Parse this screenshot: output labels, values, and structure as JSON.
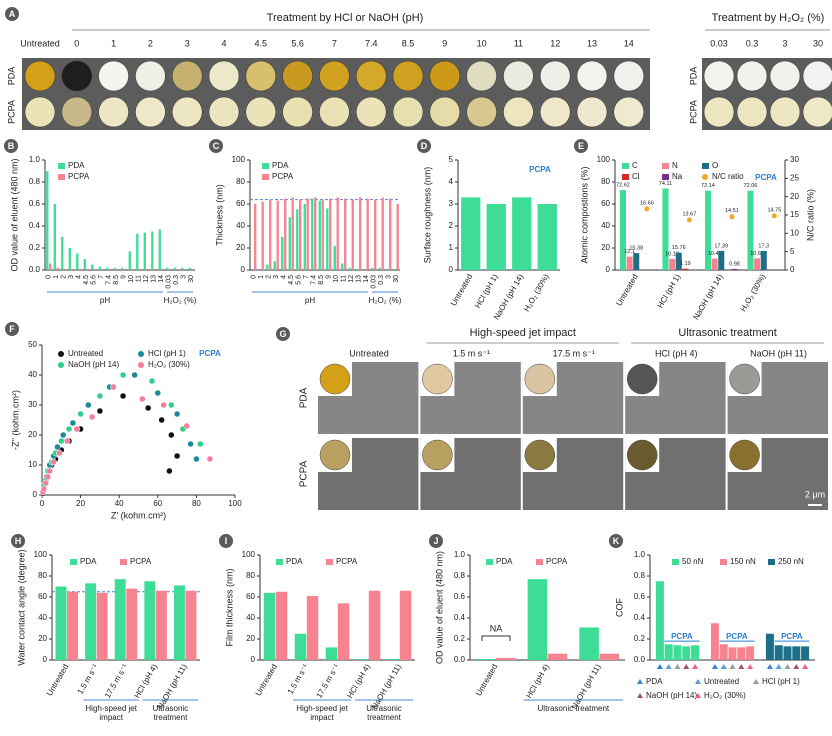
{
  "panel_a": {
    "label": "A",
    "header_ph": "Treatment by HCl or NaOH (pH)",
    "header_h2o2": "Treatment by H₂O₂ (%)",
    "rows": [
      "PDA",
      "PCPA"
    ],
    "columns": [
      "Untreated",
      "0",
      "1",
      "2",
      "3",
      "4",
      "4.5",
      "5.6",
      "7",
      "7.4",
      "8.5",
      "9",
      "10",
      "11",
      "12",
      "13",
      "14"
    ],
    "h2o2_columns": [
      "0.03",
      "0.3",
      "3",
      "30"
    ],
    "pda_colors": [
      "#d4a017",
      "#1e1e1e",
      "#f5f5f0",
      "#efefe8",
      "#c8b070",
      "#ece8c8",
      "#d8bf6e",
      "#c99a20",
      "#d0a020",
      "#d4a828",
      "#d0a020",
      "#cc9a18",
      "#e0dcc0",
      "#ecebe0",
      "#f0efe8",
      "#f2f2ee",
      "#f0f0ec"
    ],
    "pcpa_colors": [
      "#ebe3b8",
      "#c9b98a",
      "#ede6c4",
      "#eee8c8",
      "#ece6c2",
      "#ebe4bc",
      "#ebe3b8",
      "#e9e0b2",
      "#eae1b4",
      "#ebe2b6",
      "#e8dfb0",
      "#e6dcaa",
      "#d8c890",
      "#ece5c0",
      "#eee8c8",
      "#eee9cc",
      "#efeacf"
    ],
    "h2o2_pda_colors": [
      "#f2f2ef",
      "#f1f1ee",
      "#f0f0ec",
      "#f2f2f0"
    ],
    "h2o2_pcpa_colors": [
      "#ede6c0",
      "#ece5be",
      "#ede6c2",
      "#eee8c6"
    ]
  },
  "panel_g": {
    "label": "G",
    "group_headers": [
      "High-speed jet impact",
      "Ultrasonic treatment"
    ],
    "columns": [
      "Untreated",
      "1.5 m s⁻¹",
      "17.5 m s⁻¹",
      "HCl (pH 4)",
      "NaOH (pH 11)"
    ],
    "rows": [
      "PDA",
      "PCPA"
    ],
    "pda_colors": [
      "#d4a017",
      "#e0c8a0",
      "#d8c4a0",
      "#555555",
      "#9a9a96"
    ],
    "pcpa_colors": [
      "#b8a060",
      "#b8a060",
      "#8a7a40",
      "#6a5a30",
      "#8a7030"
    ],
    "scale_bar": "2 μm"
  },
  "chart_data": [
    {
      "label": "B",
      "type": "bar",
      "ylabel": "OD value of eluent (480 nm)",
      "categories": [
        "0",
        "1",
        "2",
        "3",
        "4",
        "4.5",
        "5.6",
        "7",
        "7.4",
        "8.5",
        "9",
        "10",
        "11",
        "12",
        "13",
        "14",
        "0.03",
        "0.3",
        "3",
        "30"
      ],
      "x_groups": [
        "pH",
        "H₂O₂ (%)"
      ],
      "series": [
        {
          "name": "PDA",
          "color": "#3ddc97",
          "values": [
            0.9,
            0.6,
            0.3,
            0.2,
            0.15,
            0.1,
            0.05,
            0.03,
            0.02,
            0.02,
            0.02,
            0.17,
            0.33,
            0.34,
            0.35,
            0.37,
            0.02,
            0.02,
            0.02,
            0.02
          ]
        },
        {
          "name": "PCPA",
          "color": "#f6838f",
          "values": [
            0.06,
            0.02,
            0.01,
            0.01,
            0.01,
            0.01,
            0.01,
            0.01,
            0.01,
            0.01,
            0.01,
            0.01,
            0.01,
            0.01,
            0.01,
            0.01,
            0.01,
            0.01,
            0.01,
            0.01
          ]
        }
      ],
      "ylim": [
        0,
        1
      ],
      "yticks": [
        {
          "value": 0,
          "label": "0.0"
        },
        0.2,
        0.4,
        0.6,
        0.8,
        {
          "value": 1,
          "label": "1.0"
        }
      ]
    },
    {
      "label": "C",
      "type": "bar",
      "ylabel": "Thickness (nm)",
      "categories": [
        "0",
        "1",
        "2",
        "3",
        "4",
        "4.5",
        "5.6",
        "7",
        "7.4",
        "8.5",
        "9",
        "10",
        "11",
        "12",
        "13",
        "14",
        "0.03",
        "0.3",
        "3",
        "30"
      ],
      "x_groups": [
        "pH",
        "H₂O₂ (%)"
      ],
      "series": [
        {
          "name": "PDA",
          "color": "#3ddc97",
          "values": [
            0,
            0,
            5,
            8,
            30,
            48,
            55,
            60,
            65,
            63,
            56,
            22,
            6,
            2,
            1,
            0,
            2,
            2,
            1,
            1
          ]
        },
        {
          "name": "PCPA",
          "color": "#f6838f",
          "values": [
            60,
            62,
            64,
            63,
            65,
            66,
            64,
            65,
            66,
            64,
            65,
            66,
            65,
            64,
            66,
            65,
            64,
            66,
            65,
            60
          ]
        }
      ],
      "reference_line": 64,
      "ylim": [
        0,
        100
      ],
      "yticks": [
        0,
        20,
        40,
        60,
        80,
        100
      ]
    },
    {
      "label": "D",
      "type": "bar",
      "ylabel": "Surface roughness (nm)",
      "annotation": "PCPA",
      "categories": [
        "Untreated",
        "HCl (pH 1)",
        "NaOH (pH 14)",
        "H₂O₂ (30%)"
      ],
      "values": [
        3.3,
        3.0,
        3.3,
        3.0
      ],
      "color": "#3ddc97",
      "ylim": [
        0,
        5
      ],
      "yticks": [
        0,
        1,
        2,
        3,
        4,
        5
      ]
    },
    {
      "label": "E",
      "type": "bar",
      "ylabel": "Atomic compostions (%)",
      "y2label": "N/C ratio (%)",
      "annotation": "PCPA",
      "categories": [
        "Untreated",
        "HCl (pH 1)",
        "NaOH (pH 14)",
        "H₂O₂ (30%)"
      ],
      "series": [
        {
          "name": "C",
          "color": "#3ddc97",
          "values": [
            72.62,
            74.11,
            72.14,
            72.06
          ]
        },
        {
          "name": "N",
          "color": "#f6838f",
          "values": [
            12.1,
            10.13,
            10.47,
            10.6
          ],
          "value_labels": [
            "12.1",
            "10.13",
            "10.47",
            "10.60"
          ]
        },
        {
          "name": "O",
          "color": "#1c6f86",
          "values": [
            15.38,
            15.76,
            17.39,
            17.3
          ]
        },
        {
          "name": "Cl",
          "color": "#d62728",
          "values": [
            null,
            1.19,
            null,
            null
          ]
        },
        {
          "name": "Na",
          "color": "#7b2d8e",
          "values": [
            null,
            null,
            0.98,
            null
          ]
        },
        {
          "name": "N/C ratio",
          "color": "#f5a623",
          "axis": "y2",
          "values": [
            16.66,
            13.67,
            14.51,
            14.75
          ]
        }
      ],
      "ylim": [
        0,
        100
      ],
      "yticks": [
        0,
        20,
        40,
        60,
        80,
        100
      ],
      "y2lim": [
        0,
        30
      ],
      "y2ticks": [
        0,
        5,
        10,
        15,
        20,
        25,
        30
      ]
    },
    {
      "label": "F",
      "type": "scatter",
      "xlabel": "Z' (kohm.cm²)",
      "ylabel": "-Z'' (kohm.cm²)",
      "annotation": "PCPA",
      "series": [
        {
          "name": "Untreated",
          "color": "#111111",
          "x": [
            0.5,
            1,
            1.5,
            2.5,
            3.5,
            5,
            7,
            10,
            14,
            20,
            30,
            42,
            55,
            62,
            67,
            70,
            66
          ],
          "values": [
            0.5,
            2,
            4,
            6,
            8,
            10,
            12,
            15,
            18,
            22,
            28,
            33,
            29,
            25,
            20,
            13,
            8
          ]
        },
        {
          "name": "HCl (pH 1)",
          "color": "#1c8a9a",
          "x": [
            0.5,
            1,
            2,
            3,
            4,
            6,
            8,
            11,
            16,
            24,
            35,
            48,
            60,
            70,
            77,
            80
          ],
          "values": [
            1,
            3,
            5,
            8,
            10,
            13,
            16,
            20,
            24,
            30,
            36,
            40,
            34,
            27,
            17,
            12
          ]
        },
        {
          "name": "NaOH (pH 14)",
          "color": "#2fcf8a",
          "x": [
            0.5,
            1,
            2,
            3,
            5,
            7,
            10,
            14,
            20,
            30,
            42,
            57,
            67,
            73,
            82
          ],
          "values": [
            1,
            3,
            5,
            8,
            11,
            14,
            18,
            22,
            27,
            33,
            40,
            38,
            30,
            22,
            17
          ]
        },
        {
          "name": "H₂O₂ (30%)",
          "color": "#f47f9a",
          "x": [
            0.5,
            1,
            2,
            3,
            4,
            6,
            9,
            13,
            18,
            26,
            37,
            52,
            63,
            75,
            87
          ],
          "values": [
            1,
            2,
            4,
            6,
            8,
            11,
            14,
            18,
            22,
            26,
            36,
            32,
            30,
            23,
            12
          ]
        }
      ],
      "xlim": [
        0,
        100
      ],
      "xticks": [
        0,
        20,
        40,
        60,
        80,
        100
      ],
      "ylim": [
        0,
        50
      ],
      "yticks": [
        0,
        10,
        20,
        30,
        40,
        50
      ]
    },
    {
      "label": "H",
      "type": "bar",
      "ylabel": "Water contact angle (degree)",
      "categories": [
        "Untreated",
        "1.5 m s⁻¹",
        "17.5 m s⁻¹",
        "HCl (pH 4)",
        "NaOH (pH 11)"
      ],
      "x_groups": [
        "High-speed jet impact",
        "Ultrasonic treatment"
      ],
      "series": [
        {
          "name": "PDA",
          "color": "#3ddc97",
          "values": [
            70,
            73,
            77,
            75,
            71
          ]
        },
        {
          "name": "PCPA",
          "color": "#f6838f",
          "values": [
            65,
            64,
            68,
            66,
            66
          ]
        }
      ],
      "reference_line": 65,
      "ylim": [
        0,
        100
      ],
      "yticks": [
        0,
        20,
        40,
        60,
        80,
        100
      ]
    },
    {
      "label": "I",
      "type": "bar",
      "ylabel": "Film thickness (nm)",
      "categories": [
        "Untreated",
        "1.5 m s⁻¹",
        "17.5 m s⁻¹",
        "HCl (pH 4)",
        "NaOH (pH 11)"
      ],
      "x_groups": [
        "High-speed jet impact",
        "Ultrasonic treatment"
      ],
      "series": [
        {
          "name": "PDA",
          "color": "#3ddc97",
          "values": [
            64,
            25,
            12,
            1,
            1
          ]
        },
        {
          "name": "PCPA",
          "color": "#f6838f",
          "values": [
            65,
            61,
            54,
            66,
            66
          ]
        }
      ],
      "ylim": [
        0,
        100
      ],
      "yticks": [
        0,
        20,
        40,
        60,
        80,
        100
      ]
    },
    {
      "label": "J",
      "type": "bar",
      "ylabel": "OD value of eluent (480 nm)",
      "annotation": "NA",
      "categories": [
        "Untreated",
        "HCl (pH 4)",
        "NaOH (pH 11)"
      ],
      "x_groups": [
        "Ultrasonic treatment"
      ],
      "series": [
        {
          "name": "PDA",
          "color": "#3ddc97",
          "values": [
            0.01,
            0.77,
            0.31
          ]
        },
        {
          "name": "PCPA",
          "color": "#f6838f",
          "values": [
            0.02,
            0.06,
            0.06
          ]
        }
      ],
      "ylim": [
        0,
        1
      ],
      "yticks": [
        {
          "value": 0,
          "label": "0.0"
        },
        0.2,
        0.4,
        0.6,
        0.8,
        {
          "value": 1,
          "label": "1.0"
        }
      ]
    },
    {
      "label": "K",
      "type": "bar",
      "ylabel": "COF",
      "annotation": "PCPA",
      "categories": [
        "PDA",
        "Untreated",
        "HCl (pH 1)",
        "NaOH (pH 14)",
        "H₂O₂ (30%)"
      ],
      "marker_colors": [
        "#3a7fd5",
        "#5a9bd5",
        "#9a9a9a",
        "#a0507a",
        "#f06080"
      ],
      "series": [
        {
          "name": "50 nN",
          "color": "#3ddc97",
          "values": [
            0.75,
            0.15,
            0.14,
            0.13,
            0.14
          ]
        },
        {
          "name": "150 nN",
          "color": "#f6838f",
          "values": [
            0.35,
            0.15,
            0.12,
            0.12,
            0.13
          ]
        },
        {
          "name": "250 nN",
          "color": "#1c6f86",
          "values": [
            0.25,
            0.14,
            0.13,
            0.13,
            0.13
          ]
        }
      ],
      "ylim": [
        0,
        1
      ],
      "yticks": [
        {
          "value": 0,
          "label": "0.0"
        },
        0.2,
        0.4,
        0.6,
        0.8,
        {
          "value": 1,
          "label": "1.0"
        }
      ]
    }
  ]
}
